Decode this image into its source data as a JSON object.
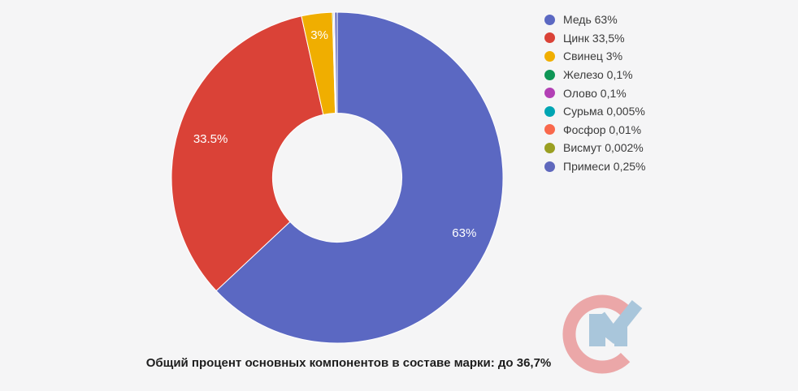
{
  "background_color": "#f5f5f6",
  "chart_data": {
    "type": "pie",
    "donut_hole_ratio": 0.39,
    "start_angle_deg": 0,
    "direction": "clockwise",
    "legend_position": "right",
    "slice_border_color": "#ffffff",
    "label_color": "#ffffff",
    "slices": [
      {
        "slug": "copper",
        "name": "Медь",
        "value": 63,
        "color": "#5b68c2",
        "slice_label": "63%",
        "legend_label": "Медь 63%",
        "label_r": 0.835
      },
      {
        "slug": "zinc",
        "name": "Цинк",
        "value": 33.5,
        "color": "#da4237",
        "slice_label": "33.5%",
        "legend_label": "Цинк 33,5%",
        "label_r": 0.8
      },
      {
        "slug": "lead",
        "name": "Свинец",
        "value": 3,
        "color": "#f0ae00",
        "slice_label": "3%",
        "legend_label": "Свинец 3%",
        "label_r": 0.87
      },
      {
        "slug": "iron",
        "name": "Железо",
        "value": 0.1,
        "color": "#0f9656",
        "legend_label": "Железо 0,1%"
      },
      {
        "slug": "tin",
        "name": "Олово",
        "value": 0.1,
        "color": "#b240b5",
        "legend_label": "Олово 0,1%"
      },
      {
        "slug": "antimony",
        "name": "Сурьма",
        "value": 0.005,
        "color": "#00a5b3",
        "legend_label": "Сурьма 0,005%"
      },
      {
        "slug": "phosphorus",
        "name": "Фосфор",
        "value": 0.01,
        "color": "#f9684c",
        "legend_label": "Фосфор 0,01%"
      },
      {
        "slug": "bismuth",
        "name": "Висмут",
        "value": 0.002,
        "color": "#9a9f22",
        "legend_label": "Висмут 0,002%"
      },
      {
        "slug": "impurities",
        "name": "Примеси",
        "value": 0.25,
        "color": "#5f68bd",
        "legend_label": "Примеси 0,25%"
      }
    ],
    "caption": "Общий процент основных компонентов в составе марки: до 36,7%"
  },
  "logo": {
    "text": "СМ",
    "c_color": "#eba7a8",
    "m_color": "#a9c6db"
  }
}
